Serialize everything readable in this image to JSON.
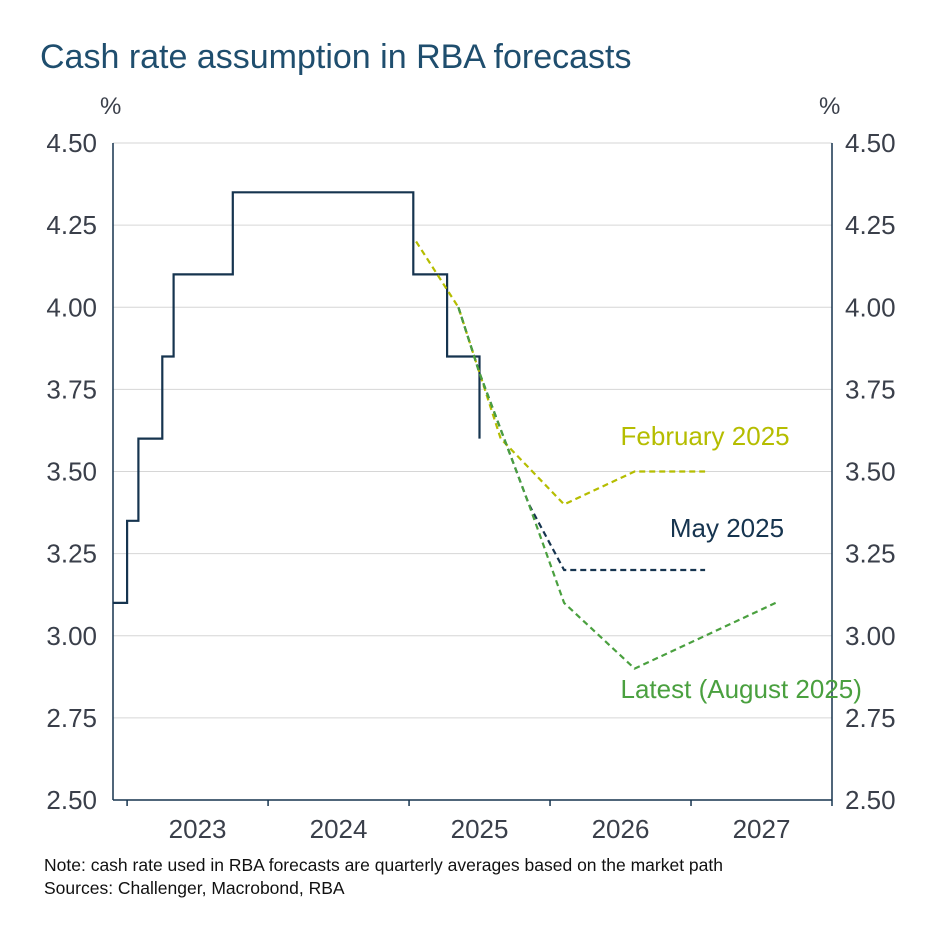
{
  "chart_data": {
    "type": "line",
    "title": "Cash rate assumption in RBA forecasts",
    "ylabel_left": "%",
    "ylabel_right": "%",
    "ylim": [
      2.5,
      4.5
    ],
    "y_ticks": [
      "2.50",
      "2.75",
      "3.00",
      "3.25",
      "3.50",
      "3.75",
      "4.00",
      "4.25",
      "4.50"
    ],
    "y_tick_values": [
      2.5,
      2.75,
      3.0,
      3.25,
      3.5,
      3.75,
      4.0,
      4.25,
      4.5
    ],
    "xlim": [
      2022.9,
      2028.0
    ],
    "x_ticks": [
      "2023",
      "2024",
      "2025",
      "2026",
      "2027"
    ],
    "x_tick_values": [
      2023.5,
      2024.5,
      2025.5,
      2026.5,
      2027.5
    ],
    "x_gridlines": [
      2023.0,
      2024.0,
      2025.0,
      2026.0,
      2027.0,
      2028.0
    ],
    "grid": "horizontal",
    "series": [
      {
        "name": "Cash rate",
        "style": "solid",
        "color": "#16344f",
        "points": [
          [
            2022.9,
            3.1
          ],
          [
            2023.0,
            3.1
          ],
          [
            2023.0,
            3.35
          ],
          [
            2023.08,
            3.35
          ],
          [
            2023.08,
            3.6
          ],
          [
            2023.25,
            3.6
          ],
          [
            2023.25,
            3.85
          ],
          [
            2023.33,
            3.85
          ],
          [
            2023.33,
            4.1
          ],
          [
            2023.75,
            4.1
          ],
          [
            2023.75,
            4.35
          ],
          [
            2025.03,
            4.35
          ],
          [
            2025.03,
            4.1
          ],
          [
            2025.27,
            4.1
          ],
          [
            2025.27,
            3.85
          ],
          [
            2025.5,
            3.85
          ],
          [
            2025.5,
            3.6
          ]
        ]
      },
      {
        "name": "February 2025",
        "style": "dashed",
        "color": "#b5bd00",
        "points": [
          [
            2025.05,
            4.2
          ],
          [
            2025.35,
            4.0
          ],
          [
            2025.65,
            3.6
          ],
          [
            2026.1,
            3.4
          ],
          [
            2026.6,
            3.5
          ],
          [
            2027.1,
            3.5
          ]
        ]
      },
      {
        "name": "May 2025",
        "style": "dashed",
        "color": "#16344f",
        "points": [
          [
            2025.35,
            4.0
          ],
          [
            2025.5,
            3.8
          ],
          [
            2025.85,
            3.4
          ],
          [
            2026.1,
            3.2
          ],
          [
            2026.6,
            3.2
          ],
          [
            2027.1,
            3.2
          ]
        ]
      },
      {
        "name": "Latest (August 2025)",
        "style": "dashed",
        "color": "#4aa03f",
        "points": [
          [
            2025.35,
            4.0
          ],
          [
            2025.5,
            3.8
          ],
          [
            2025.85,
            3.4
          ],
          [
            2026.1,
            3.1
          ],
          [
            2026.6,
            2.9
          ],
          [
            2027.1,
            3.0
          ],
          [
            2027.6,
            3.1
          ]
        ]
      }
    ],
    "annotations": [
      {
        "text": "February 2025",
        "color": "#b5bd00",
        "x": 2026.5,
        "y": 3.58
      },
      {
        "text": "May 2025",
        "color": "#16344f",
        "x": 2026.85,
        "y": 3.3
      },
      {
        "text": "Latest (August 2025)",
        "color": "#4aa03f",
        "x": 2026.5,
        "y": 2.81
      }
    ]
  },
  "notes": {
    "note": "Note: cash rate used in RBA forecasts are quarterly averages based on the market path",
    "sources": "Sources: Challenger, Macrobond, RBA"
  },
  "colors": {
    "title": "#1f4e6e",
    "axis_text": "#3a3f4a",
    "axis_line": "#16344f",
    "grid": "#d6d6d6"
  }
}
